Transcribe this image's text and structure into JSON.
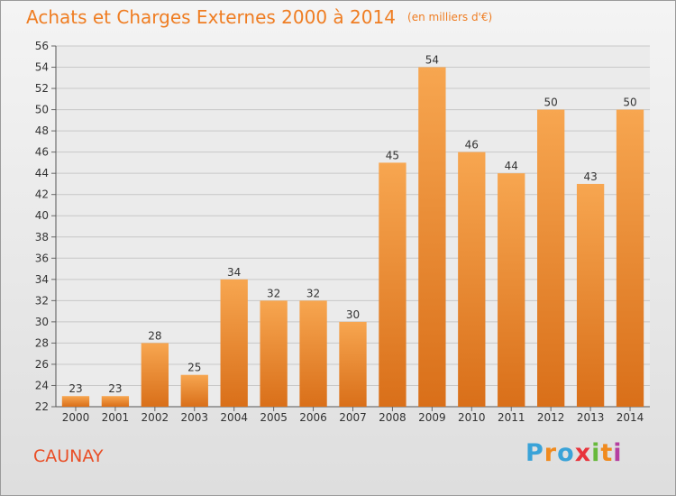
{
  "title": "Achats et Charges Externes 2000 à 2014",
  "unit": "(en milliers d'€)",
  "place": "CAUNAY",
  "logo": {
    "text": "Proxiti",
    "letters": [
      "P",
      "r",
      "o",
      "x",
      "i",
      "t",
      "i"
    ]
  },
  "colors": {
    "bar_light": "#f7a650",
    "bar_dark": "#d96f19",
    "title": "#ef7d22",
    "place": "#e94e26"
  },
  "chart_data": {
    "type": "bar",
    "title": "Achats et Charges Externes 2000 à 2014",
    "subtitle": "(en milliers d'€)",
    "categories": [
      "2000",
      "2001",
      "2002",
      "2003",
      "2004",
      "2005",
      "2006",
      "2007",
      "2008",
      "2009",
      "2010",
      "2011",
      "2012",
      "2013",
      "2014"
    ],
    "values": [
      23,
      23,
      28,
      25,
      34,
      32,
      32,
      30,
      45,
      54,
      46,
      44,
      50,
      43,
      50
    ],
    "ylim": [
      22,
      56
    ],
    "yticks": [
      22,
      24,
      26,
      28,
      30,
      32,
      34,
      36,
      38,
      40,
      42,
      44,
      46,
      48,
      50,
      52,
      54,
      56
    ],
    "grid": true,
    "data_labels": true
  }
}
